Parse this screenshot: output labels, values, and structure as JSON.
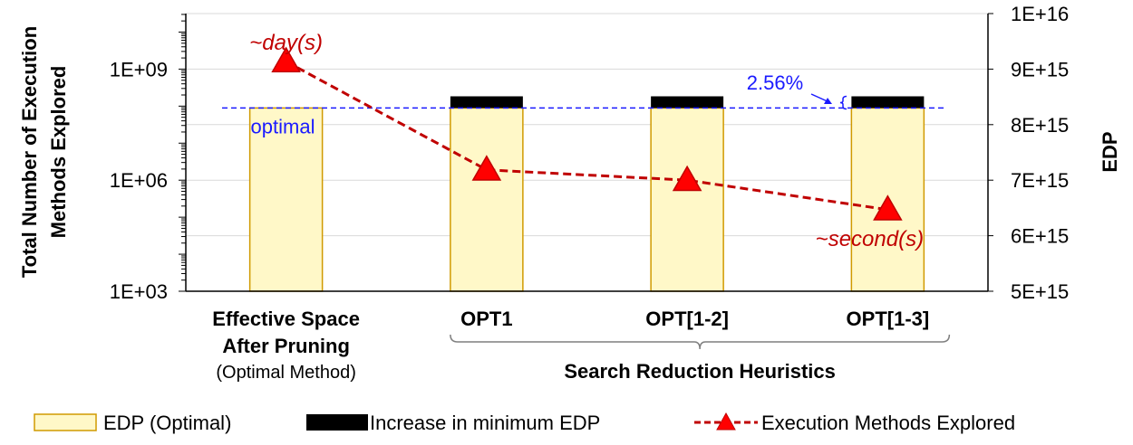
{
  "chart_data": {
    "type": "bar",
    "categories": [
      "Effective Space\nAfter Pruning",
      "OPT1",
      "OPT[1-2]",
      "OPT[1-3]"
    ],
    "category_sub": "(Optimal Method)",
    "group_label": "Search Reduction Heuristics",
    "y_left": {
      "label": "Total Number of Execution Methods Explored",
      "label_lines": [
        "Total Number of Execution",
        "Methods Explored"
      ],
      "scale": "log",
      "ticks": [
        "1E+03",
        "1E+06",
        "1E+09"
      ]
    },
    "y_right": {
      "label": "EDP",
      "ylim": [
        5000000000000000.0,
        1e+16
      ],
      "ticks": [
        "5E+15",
        "6E+15",
        "7E+15",
        "8E+15",
        "9E+15",
        "1E+16"
      ]
    },
    "series": [
      {
        "name": "EDP (Optimal)",
        "axis": "right",
        "kind": "bar",
        "color": "#fff8c8",
        "edge": "#d09a00",
        "values": [
          8300000000000000.0,
          8300000000000000.0,
          8300000000000000.0,
          8300000000000000.0
        ]
      },
      {
        "name": "Increase in minimum EDP",
        "axis": "right",
        "kind": "bar-stack",
        "color": "#000000",
        "values": [
          0,
          210000000000000.0,
          210000000000000.0,
          210000000000000.0
        ]
      },
      {
        "name": "Execution Methods Explored",
        "axis": "left",
        "kind": "line",
        "color": "#c00000",
        "marker": "triangle",
        "values": [
          1600000000.0,
          1900000.0,
          1000000.0,
          160000.0
        ]
      }
    ],
    "optimal_line": {
      "value": 8300000000000000.0,
      "label": "optimal",
      "color": "#1a1aff"
    },
    "annotations": {
      "day": "~day(s)",
      "second": "~second(s)",
      "percent": "2.56%"
    },
    "grid": true,
    "legend_position": "bottom"
  }
}
